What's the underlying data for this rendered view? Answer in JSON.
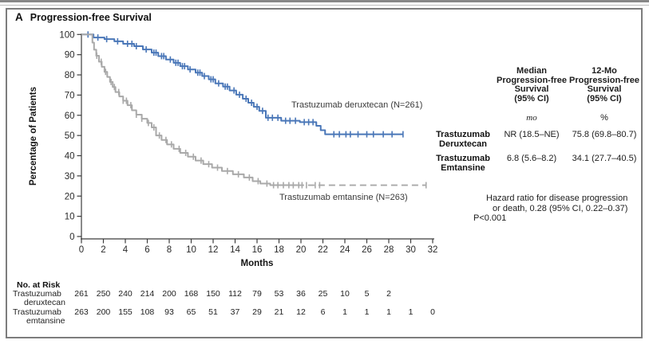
{
  "panel_label": "A",
  "summary_table": {
    "col1_header": [
      "Median",
      "Progression-free",
      "Survival",
      "(95% CI)"
    ],
    "col2_header": [
      "12-Mo",
      "Progression-free",
      "Survival",
      "(95% CI)"
    ],
    "col1_unit": "mo",
    "col2_unit": "%",
    "rows": [
      {
        "name1": "Trastuzumab",
        "name2": "Deruxtecan",
        "median": "NR (18.5–NE)",
        "twelve_mo": "75.8 (69.8–80.7)"
      },
      {
        "name1": "Trastuzumab",
        "name2": "Emtansine",
        "median": "6.8 (5.6–8.2)",
        "twelve_mo": "34.1 (27.7–40.5)"
      }
    ]
  },
  "hazard_note": {
    "line1": "Hazard ratio for disease progression",
    "line2": "or death, 0.28 (95% CI, 0.22–0.37)",
    "line3": "P<0.001"
  },
  "chart_data": {
    "type": "line",
    "subtype": "kaplan-meier-step",
    "title": "Progression-free Survival",
    "xlabel": "Months",
    "ylabel": "Percentage of Patients",
    "xlim": [
      0,
      32
    ],
    "ylim": [
      0,
      100
    ],
    "x_ticks": [
      0,
      2,
      4,
      6,
      8,
      10,
      12,
      14,
      16,
      18,
      20,
      22,
      24,
      26,
      28,
      30,
      32
    ],
    "y_ticks": [
      0,
      10,
      20,
      30,
      40,
      50,
      60,
      70,
      80,
      90,
      100
    ],
    "grid": false,
    "series": [
      {
        "name": "Trastuzumab deruxtecan",
        "n": 261,
        "label": "Trastuzumab deruxtecan (N=261)",
        "color": "#4a77b8",
        "median_pfs": "NR (18.5–NE)",
        "pfs_12mo": "75.8 (69.8–80.7)",
        "steps": [
          [
            0,
            100
          ],
          [
            1.1,
            98.5
          ],
          [
            2.1,
            97.7
          ],
          [
            3.0,
            96.6
          ],
          [
            3.8,
            95.4
          ],
          [
            4.8,
            94.2
          ],
          [
            5.6,
            92.6
          ],
          [
            6.4,
            91.0
          ],
          [
            7.0,
            89.3
          ],
          [
            7.7,
            87.6
          ],
          [
            8.4,
            86.0
          ],
          [
            9.0,
            84.3
          ],
          [
            9.7,
            82.7
          ],
          [
            10.4,
            81.1
          ],
          [
            11.0,
            79.4
          ],
          [
            11.6,
            77.8
          ],
          [
            12.2,
            75.8
          ],
          [
            12.9,
            74.2
          ],
          [
            13.5,
            72.3
          ],
          [
            14.1,
            70.2
          ],
          [
            14.7,
            68.2
          ],
          [
            15.2,
            66.2
          ],
          [
            15.7,
            64.2
          ],
          [
            16.2,
            62.2
          ],
          [
            16.8,
            58.8
          ],
          [
            18.2,
            57.3
          ],
          [
            19.9,
            56.6
          ],
          [
            21.4,
            54.8
          ],
          [
            21.8,
            52.6
          ],
          [
            22.2,
            50.6
          ]
        ],
        "end_month": 29.3,
        "dash_from_month": null,
        "censor_months": [
          0.6,
          1.5,
          2.3,
          3.3,
          4.2,
          4.6,
          5.0,
          5.9,
          6.6,
          6.8,
          7.3,
          7.5,
          8.1,
          8.6,
          8.8,
          9.2,
          9.4,
          9.9,
          10.6,
          10.8,
          11.2,
          11.8,
          12.0,
          12.5,
          13.1,
          13.3,
          13.9,
          14.4,
          15.0,
          15.5,
          16.0,
          16.5,
          17.0,
          17.4,
          17.9,
          18.6,
          19.0,
          19.5,
          20.3,
          20.7,
          21.1,
          23.0,
          23.5,
          24.1,
          24.5,
          25.2,
          26.0,
          26.6,
          27.5,
          28.3,
          29.3
        ]
      },
      {
        "name": "Trastuzumab emtansine",
        "n": 263,
        "label": "Trastuzumab emtansine (N=263)",
        "color": "#a9a9a9",
        "median_pfs": "6.8 (5.6–8.2)",
        "pfs_12mo": "34.1 (27.7–40.5)",
        "steps": [
          [
            0,
            100
          ],
          [
            1.0,
            96.0
          ],
          [
            1.15,
            92.5
          ],
          [
            1.35,
            89.5
          ],
          [
            1.6,
            86.5
          ],
          [
            1.85,
            84.0
          ],
          [
            2.1,
            81.5
          ],
          [
            2.35,
            79.0
          ],
          [
            2.6,
            76.5
          ],
          [
            2.85,
            74.0
          ],
          [
            3.1,
            71.5
          ],
          [
            3.45,
            69.3
          ],
          [
            3.8,
            67.2
          ],
          [
            4.2,
            65.0
          ],
          [
            4.6,
            62.5
          ],
          [
            5.0,
            60.3
          ],
          [
            5.5,
            58.3
          ],
          [
            6.0,
            56.2
          ],
          [
            6.4,
            54.0
          ],
          [
            6.8,
            50.0
          ],
          [
            7.3,
            47.8
          ],
          [
            7.8,
            45.6
          ],
          [
            8.4,
            43.4
          ],
          [
            9.0,
            41.4
          ],
          [
            9.7,
            39.5
          ],
          [
            10.4,
            37.6
          ],
          [
            11.1,
            35.8
          ],
          [
            11.9,
            34.1
          ],
          [
            12.8,
            32.4
          ],
          [
            13.8,
            30.8
          ],
          [
            14.8,
            29.2
          ],
          [
            15.6,
            27.4
          ],
          [
            16.3,
            26.2
          ],
          [
            17.2,
            25.4
          ]
        ],
        "end_month": 31.4,
        "dash_from_month": 19.7,
        "censor_months": [
          1.4,
          1.8,
          2.2,
          2.7,
          3.0,
          3.4,
          3.8,
          4.1,
          4.5,
          5.0,
          5.5,
          6.1,
          6.6,
          7.1,
          7.7,
          8.2,
          8.9,
          9.5,
          10.2,
          10.9,
          11.6,
          12.4,
          13.3,
          14.3,
          15.3,
          16.1,
          16.9,
          17.5,
          17.9,
          18.4,
          18.9,
          19.3,
          19.8,
          20.1,
          20.5,
          21.3,
          21.7,
          31.4
        ]
      }
    ],
    "at_risk": {
      "heading": "No. at Risk",
      "months": [
        0,
        2,
        4,
        6,
        8,
        10,
        12,
        14,
        16,
        18,
        20,
        22,
        24,
        26,
        28,
        30,
        32
      ],
      "rows": [
        {
          "label_lines": [
            "Trastuzumab",
            "deruxtecan"
          ],
          "values": [
            261,
            250,
            240,
            214,
            200,
            168,
            150,
            112,
            79,
            53,
            36,
            25,
            10,
            5,
            2
          ]
        },
        {
          "label_lines": [
            "Trastuzumab",
            "emtansine"
          ],
          "values": [
            263,
            200,
            155,
            108,
            93,
            65,
            51,
            37,
            29,
            21,
            12,
            6,
            1,
            1,
            1,
            1,
            0
          ]
        }
      ]
    }
  }
}
